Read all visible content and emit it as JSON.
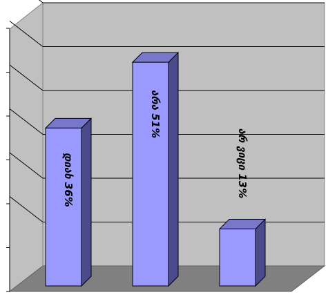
{
  "chart_data": {
    "type": "bar",
    "categories": [
      "დიახ",
      "არა",
      "არ ვიცი"
    ],
    "values": [
      36,
      51,
      13
    ],
    "labels": [
      "დიახ  36%",
      "არა  51%",
      "არ  ვიცი  13%"
    ],
    "title": "",
    "xlabel": "",
    "ylabel": "",
    "ylim": [
      0,
      60
    ],
    "grid": true,
    "bar_color": "#9999ff",
    "bar_side_color": "#4a4a8c",
    "bar_top_color": "#7777cc",
    "wall_color": "#c0c0c0",
    "floor_color": "#808080"
  }
}
